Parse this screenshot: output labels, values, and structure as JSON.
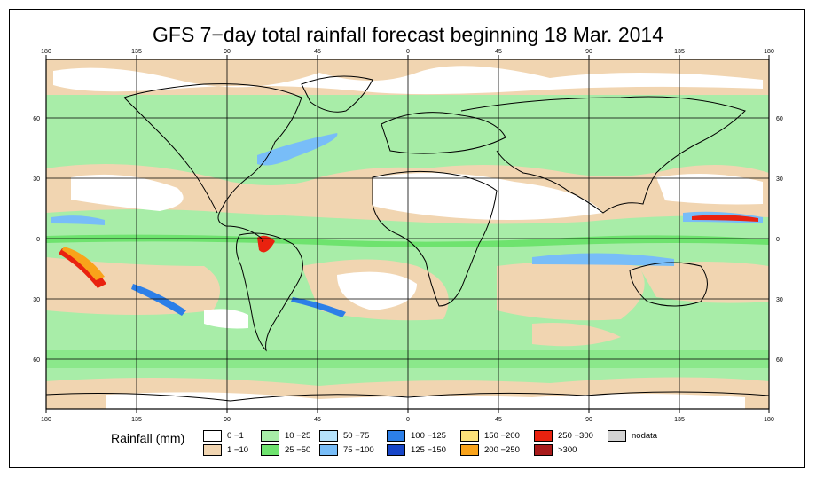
{
  "title": "GFS 7−day total rainfall forecast beginning 18 Mar. 2014",
  "axes": {
    "lon_top": [
      "180",
      "135",
      "90",
      "45",
      "0",
      "45",
      "90",
      "135",
      "180"
    ],
    "lon_bottom": [
      "180",
      "135",
      "90",
      "45",
      "0",
      "45",
      "90",
      "135",
      "180"
    ],
    "lat_left": [
      "60",
      "30",
      "0",
      "30",
      "60"
    ],
    "lat_right": [
      "60",
      "30",
      "0",
      "30",
      "60"
    ]
  },
  "legend": {
    "title": "Rainfall (mm)",
    "items": [
      {
        "label": "0 −1",
        "color": "#ffffff"
      },
      {
        "label": "1 −10",
        "color": "#f1d5b1"
      },
      {
        "label": "10 −25",
        "color": "#a8eda8"
      },
      {
        "label": "25 −50",
        "color": "#6ee36e"
      },
      {
        "label": "50 −75",
        "color": "#b5e2fb"
      },
      {
        "label": "75 −100",
        "color": "#78bdf8"
      },
      {
        "label": "100 −125",
        "color": "#2c7fe8"
      },
      {
        "label": "125 −150",
        "color": "#1745c8"
      },
      {
        "label": "150 −200",
        "color": "#fde37a"
      },
      {
        "label": "200 −250",
        "color": "#f9a31a"
      },
      {
        "label": "250 −300",
        "color": "#e9220f"
      },
      {
        "label": ">300",
        "color": "#a81a1a"
      },
      {
        "label": "nodata",
        "color": "#d3d3d3"
      }
    ]
  }
}
